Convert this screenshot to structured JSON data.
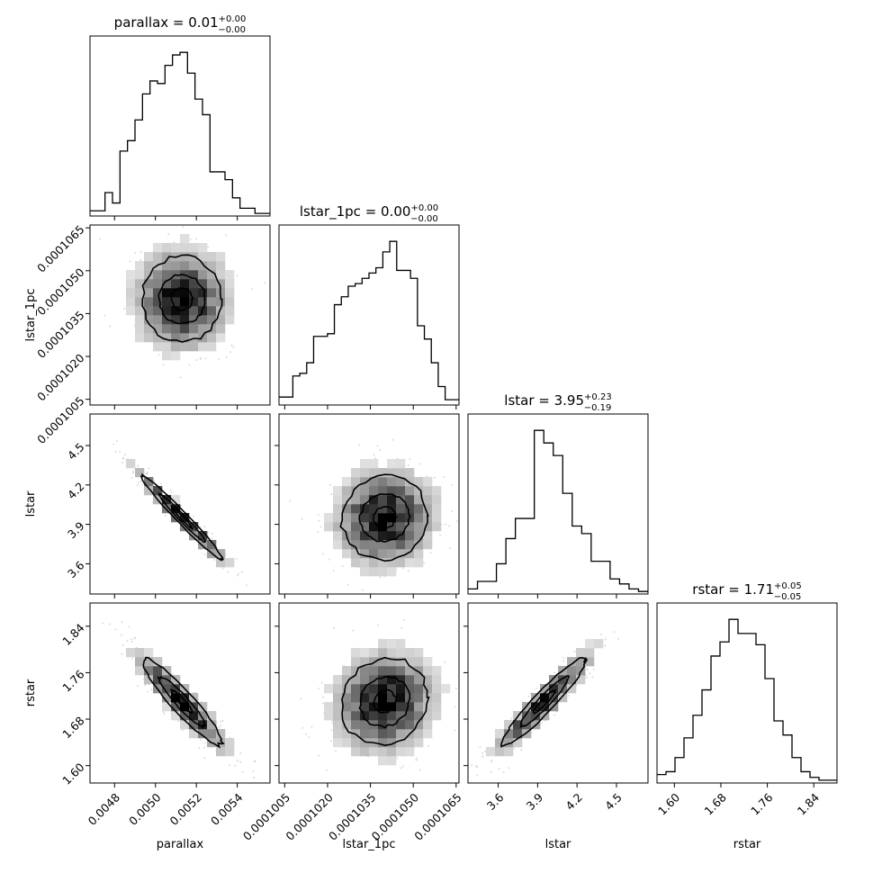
{
  "chart_data": {
    "type": "corner",
    "params": [
      {
        "name": "parallax",
        "title_main": "parallax = 0.01",
        "title_sup": "+0.00",
        "title_sub": "−0.00",
        "range": [
          0.00468,
          0.00556
        ],
        "ticks": [
          0.0048,
          0.005,
          0.0052,
          0.0054
        ],
        "ticklabels": [
          "0.0048",
          "0.0050",
          "0.0052",
          "0.0054"
        ],
        "hist": [
          2,
          2,
          9,
          5,
          25,
          29,
          37,
          47,
          52,
          51,
          58,
          62,
          63,
          55,
          45,
          39,
          17,
          17,
          14,
          7,
          3,
          3,
          1,
          1
        ]
      },
      {
        "name": "lstar_1pc",
        "title_main": "lstar_1pc = 0.00",
        "title_sup": "+0.00",
        "title_sub": "−0.00",
        "range": [
          0.0001003,
          0.0001066
        ],
        "ticks": [
          0.0001005,
          0.000102,
          0.0001035,
          0.000105,
          0.0001065
        ],
        "ticklabels": [
          "0.0001005",
          "0.0001020",
          "0.0001035",
          "0.0001050",
          "0.0001065"
        ],
        "hist": [
          3,
          3,
          11,
          12,
          16,
          26,
          26,
          27,
          38,
          41,
          45,
          46,
          48,
          50,
          52,
          58,
          62,
          51,
          51,
          48,
          30,
          25,
          16,
          7,
          2,
          2
        ]
      },
      {
        "name": "lstar",
        "title_main": "lstar = 3.95",
        "title_sup": "+0.23",
        "title_sub": "−0.19",
        "range": [
          3.37,
          4.74
        ],
        "ticks": [
          3.6,
          3.9,
          4.2,
          4.5
        ],
        "ticklabels": [
          "3.6",
          "3.9",
          "4.2",
          "4.5"
        ],
        "hist": [
          2,
          5,
          5,
          12,
          22,
          30,
          30,
          65,
          60,
          55,
          40,
          27,
          24,
          13,
          13,
          6,
          4,
          2,
          1
        ]
      },
      {
        "name": "rstar",
        "title_main": "rstar = 1.71",
        "title_sup": "+0.05",
        "title_sub": "−0.05",
        "range": [
          1.57,
          1.88
        ],
        "ticks": [
          1.6,
          1.68,
          1.76,
          1.84
        ],
        "ticklabels": [
          "1.60",
          "1.68",
          "1.76",
          "1.84"
        ],
        "hist": [
          3,
          4,
          9,
          16,
          24,
          33,
          45,
          50,
          58,
          53,
          53,
          49,
          37,
          22,
          17,
          9,
          4,
          2,
          1,
          1
        ]
      }
    ],
    "correlations": [
      [
        1.0,
        0.0,
        -0.98,
        -0.93
      ],
      [
        0.0,
        1.0,
        0.05,
        0.1
      ],
      [
        -0.98,
        0.05,
        1.0,
        0.94
      ],
      [
        -0.93,
        0.1,
        0.94,
        1.0
      ]
    ],
    "means": [
      0.00513,
      0.000104,
      3.95,
      1.71
    ],
    "sigmas": [
      0.00013,
      1e-06,
      0.21,
      0.05
    ],
    "contour_levels": [
      0.39,
      0.86,
      1.5
    ],
    "grid": false
  }
}
